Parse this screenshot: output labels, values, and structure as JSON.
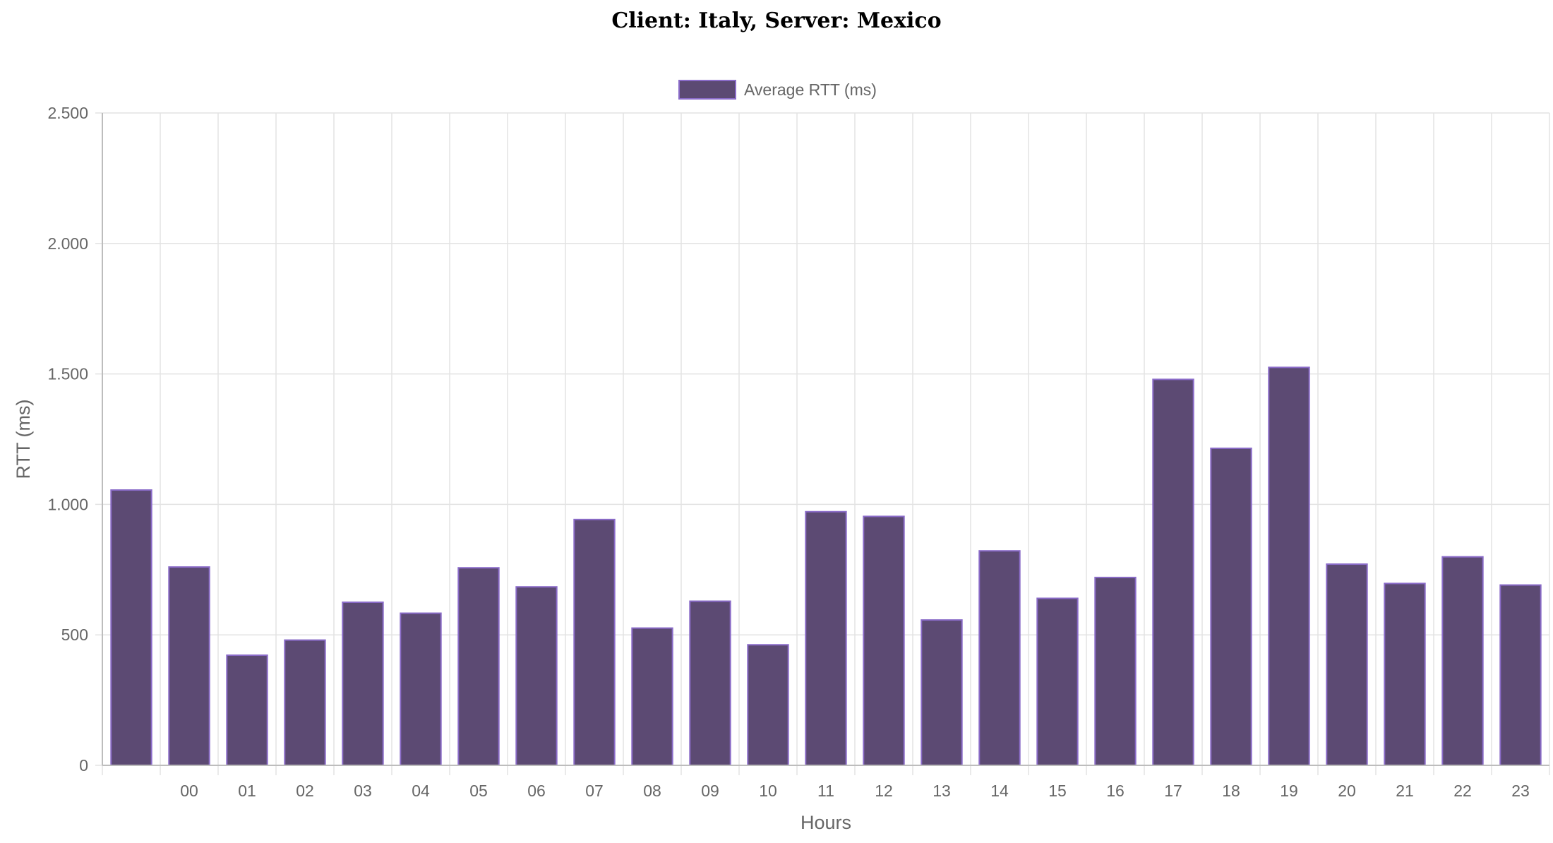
{
  "chart_data": {
    "type": "bar",
    "title": "Client: Italy, Server: Mexico",
    "xlabel": "Hours",
    "ylabel": "RTT (ms)",
    "ylim": [
      0,
      2500
    ],
    "yticks": [
      0,
      500,
      1000,
      1500,
      2000,
      2500
    ],
    "ytick_labels": [
      "0",
      "500",
      "1.000",
      "1.500",
      "2.000",
      "2.500"
    ],
    "grid": true,
    "legend_position": "top-center",
    "categories": [
      "",
      "00",
      "01",
      "02",
      "03",
      "04",
      "05",
      "06",
      "07",
      "08",
      "09",
      "10",
      "11",
      "12",
      "13",
      "14",
      "15",
      "16",
      "17",
      "18",
      "19",
      "20",
      "21",
      "22",
      "23"
    ],
    "series": [
      {
        "name": "Average RTT (ms)",
        "color": "#5c4a73",
        "border_color": "#8a6bc8",
        "values": [
          1055,
          760,
          422,
          480,
          625,
          583,
          757,
          684,
          942,
          526,
          629,
          462,
          972,
          954,
          557,
          822,
          640,
          720,
          1479,
          1215,
          1525,
          771,
          697,
          799,
          691
        ]
      }
    ]
  }
}
